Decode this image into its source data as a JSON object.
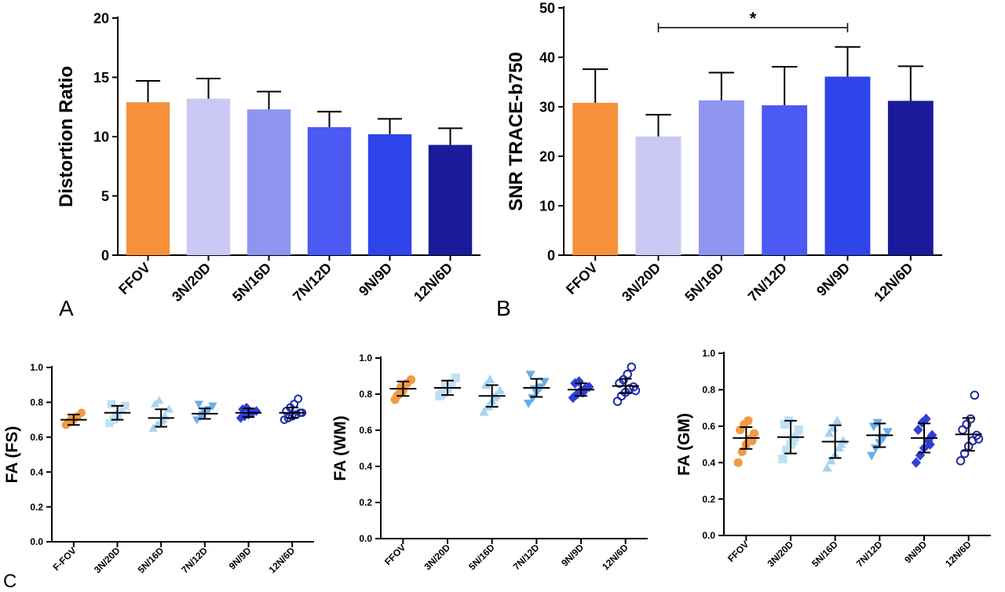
{
  "chart_data": [
    {
      "panel": "A",
      "type": "bar",
      "ylabel": "Distortion Ratio",
      "categories": [
        "FFOV",
        "3N/20D",
        "5N/16D",
        "7N/12D",
        "9N/9D",
        "12N/6D"
      ],
      "values": [
        12.9,
        13.2,
        12.3,
        10.8,
        10.2,
        9.3
      ],
      "errors": [
        1.8,
        1.7,
        1.5,
        1.3,
        1.3,
        1.4
      ],
      "colors": [
        "#f7923a",
        "#c9c9f4",
        "#8e95ef",
        "#4a5af2",
        "#2f45ea",
        "#1a1a9a"
      ],
      "yticks": [
        0,
        5,
        10,
        15,
        20
      ],
      "ylim": [
        0,
        20
      ]
    },
    {
      "panel": "B",
      "type": "bar",
      "ylabel": "SNR TRACE-b750",
      "categories": [
        "FFOV",
        "3N/20D",
        "5N/16D",
        "7N/12D",
        "9N/9D",
        "12N/6D"
      ],
      "values": [
        30.8,
        24.0,
        31.3,
        30.3,
        36.1,
        31.2
      ],
      "errors": [
        6.8,
        4.4,
        5.6,
        7.8,
        6.0,
        7.0
      ],
      "colors": [
        "#f7923a",
        "#c9c9f4",
        "#8e95ef",
        "#4a5af2",
        "#2f45ea",
        "#1a1a9a"
      ],
      "yticks": [
        0,
        10,
        20,
        30,
        40,
        50
      ],
      "ylim": [
        0,
        50
      ],
      "significance": {
        "from": "3N/20D",
        "to": "9N/9D",
        "y": 46,
        "label": "*"
      }
    },
    {
      "panel": "C",
      "type": "scatter",
      "ylabel": "FA (FS)",
      "categories": [
        "F-FOV",
        "3N/20D",
        "5N/16D",
        "7N/12D",
        "9N/9D",
        "12N/6D"
      ],
      "means": [
        0.7,
        0.74,
        0.71,
        0.735,
        0.74,
        0.74
      ],
      "sd": [
        0.03,
        0.04,
        0.05,
        0.03,
        0.025,
        0.03
      ],
      "points": [
        [
          0.67,
          0.69,
          0.7,
          0.72,
          0.74,
          0.68,
          0.71
        ],
        [
          0.68,
          0.7,
          0.73,
          0.76,
          0.78,
          0.79,
          0.71
        ],
        [
          0.65,
          0.67,
          0.69,
          0.72,
          0.76,
          0.79,
          0.81,
          0.7
        ],
        [
          0.7,
          0.72,
          0.74,
          0.76,
          0.78,
          0.79,
          0.73
        ],
        [
          0.71,
          0.72,
          0.73,
          0.74,
          0.75,
          0.76,
          0.77,
          0.74
        ],
        [
          0.7,
          0.71,
          0.72,
          0.73,
          0.74,
          0.75,
          0.77,
          0.79,
          0.82,
          0.74
        ]
      ],
      "markers": [
        "circle",
        "square",
        "triangle-up",
        "triangle-down",
        "diamond",
        "circle-open"
      ],
      "colors": [
        "#f19a45",
        "#bfe0f4",
        "#a6d4f2",
        "#6aaee8",
        "#2f3fd6",
        "#1f2aa8"
      ],
      "yticks": [
        "0.0",
        "0.2",
        "0.4",
        "0.6",
        "0.8",
        "1.0"
      ],
      "ylim": [
        0,
        1
      ]
    },
    {
      "panel": "",
      "type": "scatter",
      "ylabel": "FA (WM)",
      "categories": [
        "FFOV",
        "3N/20D",
        "5N/16D",
        "7N/12D",
        "9N/9D",
        "12N/6D"
      ],
      "means": [
        0.83,
        0.835,
        0.79,
        0.835,
        0.825,
        0.845
      ],
      "sd": [
        0.04,
        0.04,
        0.06,
        0.05,
        0.035,
        0.04
      ],
      "points": [
        [
          0.77,
          0.8,
          0.82,
          0.86,
          0.88,
          0.79,
          0.84
        ],
        [
          0.79,
          0.81,
          0.83,
          0.86,
          0.89,
          0.8,
          0.85
        ],
        [
          0.7,
          0.73,
          0.76,
          0.79,
          0.82,
          0.85,
          0.88,
          0.78
        ],
        [
          0.75,
          0.78,
          0.81,
          0.84,
          0.87,
          0.91,
          0.83
        ],
        [
          0.78,
          0.8,
          0.82,
          0.83,
          0.84,
          0.86,
          0.87,
          0.81
        ],
        [
          0.76,
          0.79,
          0.81,
          0.83,
          0.84,
          0.86,
          0.88,
          0.91,
          0.95,
          0.82
        ]
      ],
      "markers": [
        "circle",
        "square",
        "triangle-up",
        "triangle-down",
        "diamond",
        "circle-open"
      ],
      "colors": [
        "#f19a45",
        "#bfe0f4",
        "#a6d4f2",
        "#6aaee8",
        "#2f3fd6",
        "#1f2aa8"
      ],
      "yticks": [
        "0.0",
        "0.2",
        "0.4",
        "0.6",
        "0.8",
        "1.0"
      ],
      "ylim": [
        0,
        1
      ]
    },
    {
      "panel": "",
      "type": "scatter",
      "ylabel": "FA (GM)",
      "categories": [
        "FFOV",
        "3N/20D",
        "5N/16D",
        "7N/12D",
        "9N/9D",
        "12N/6D"
      ],
      "means": [
        0.535,
        0.54,
        0.515,
        0.55,
        0.535,
        0.555
      ],
      "sd": [
        0.06,
        0.09,
        0.09,
        0.065,
        0.08,
        0.09
      ],
      "points": [
        [
          0.4,
          0.46,
          0.5,
          0.53,
          0.56,
          0.58,
          0.61,
          0.63,
          0.52
        ],
        [
          0.42,
          0.47,
          0.5,
          0.54,
          0.58,
          0.61,
          0.63,
          0.52
        ],
        [
          0.37,
          0.41,
          0.44,
          0.48,
          0.52,
          0.56,
          0.59,
          0.63,
          0.5
        ],
        [
          0.44,
          0.48,
          0.51,
          0.54,
          0.57,
          0.6,
          0.62,
          0.53
        ],
        [
          0.4,
          0.44,
          0.48,
          0.52,
          0.55,
          0.58,
          0.62,
          0.64,
          0.5
        ],
        [
          0.41,
          0.45,
          0.49,
          0.52,
          0.55,
          0.58,
          0.61,
          0.64,
          0.77,
          0.53
        ]
      ],
      "markers": [
        "circle",
        "square",
        "triangle-up",
        "triangle-down",
        "diamond",
        "circle-open"
      ],
      "colors": [
        "#f19a45",
        "#bfe0f4",
        "#a6d4f2",
        "#6aaee8",
        "#2f3fd6",
        "#1f2aa8"
      ],
      "yticks": [
        "0.0",
        "0.2",
        "0.4",
        "0.6",
        "0.8",
        "1.0"
      ],
      "ylim": [
        0,
        1
      ]
    }
  ]
}
